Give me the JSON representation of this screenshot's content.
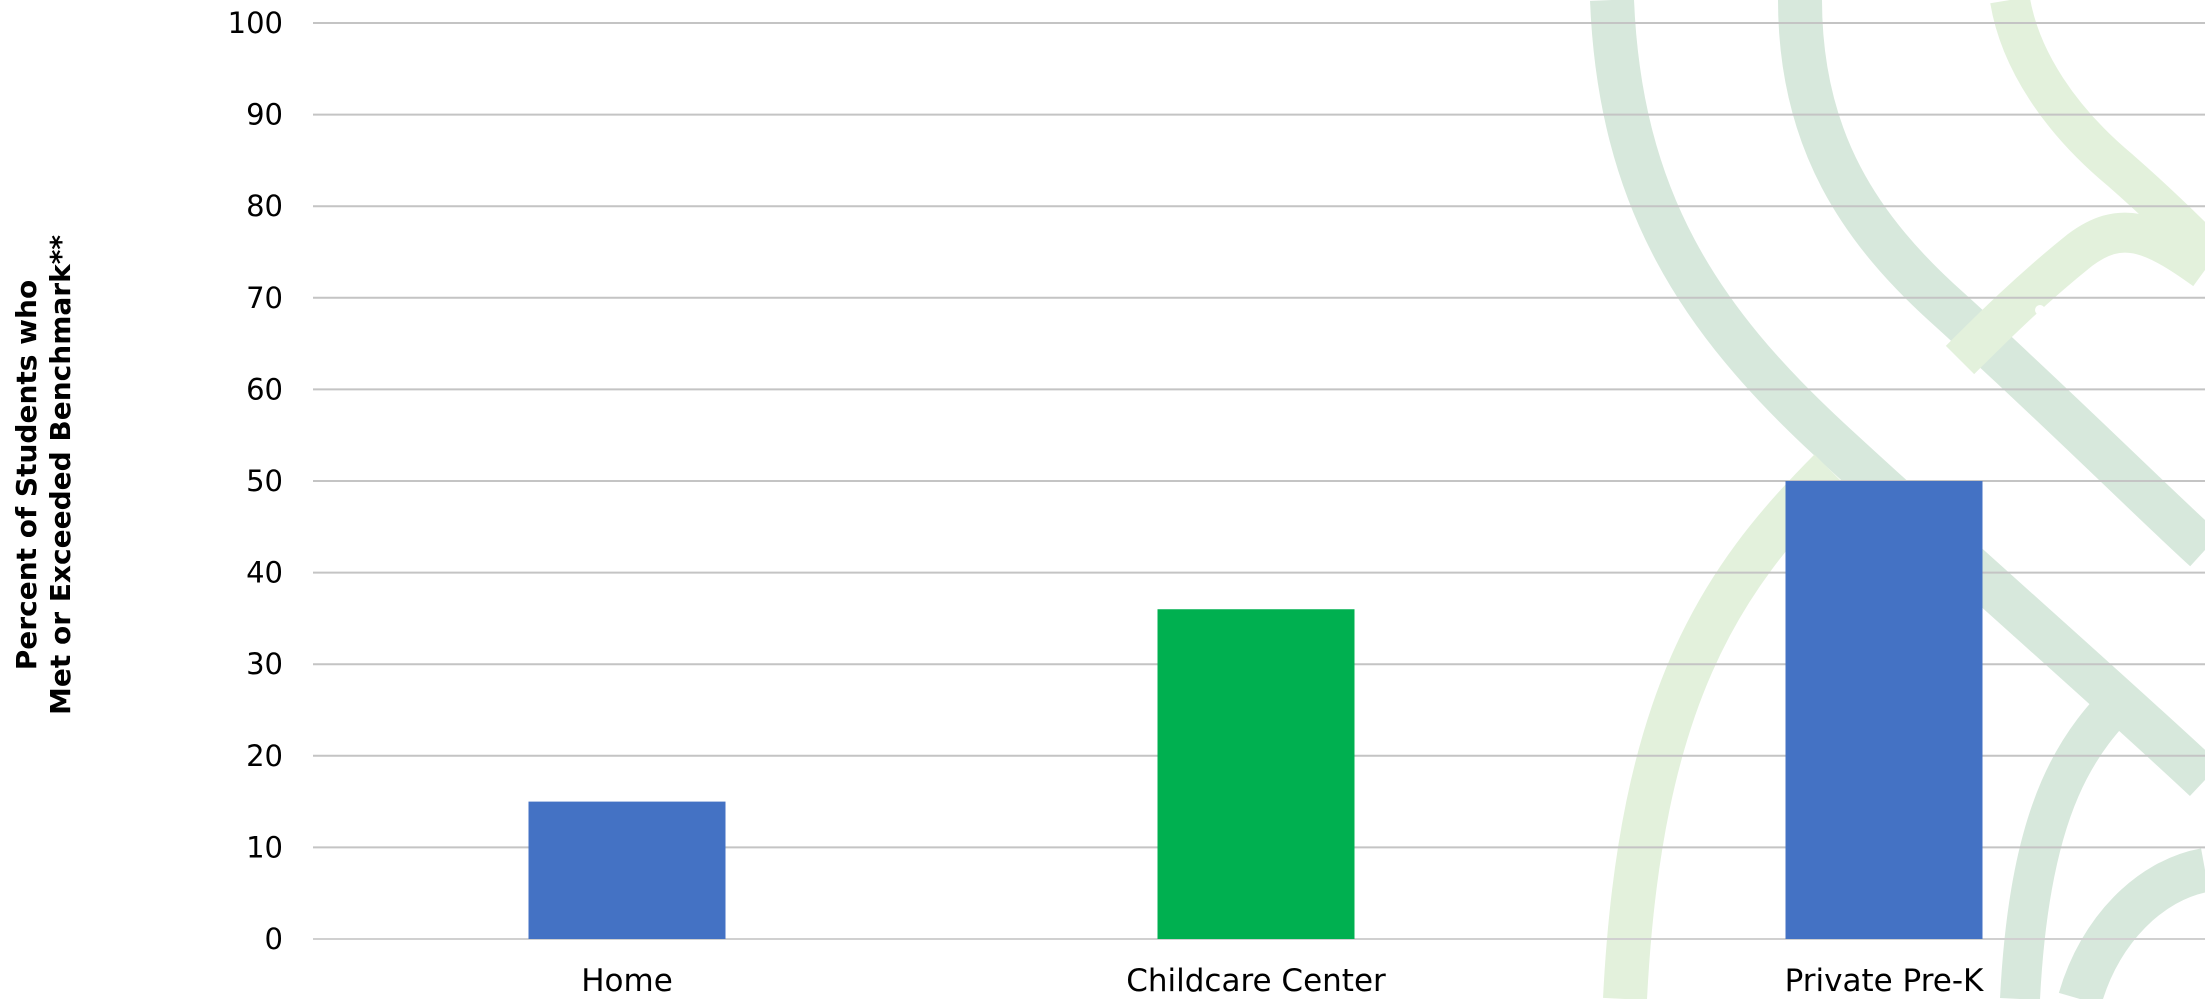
{
  "chart_data": {
    "type": "bar",
    "title": "",
    "xlabel": "",
    "ylabel_lines": [
      "Percent of Students who",
      "Met or Exceeded Benchmark**"
    ],
    "categories": [
      "Home",
      "Childcare Center",
      "Private Pre-K"
    ],
    "values": [
      15,
      36,
      50
    ],
    "bar_colors": [
      "#4472c4",
      "#00b050",
      "#4472c4"
    ],
    "ylim": [
      0,
      100
    ],
    "yticks": [
      "0",
      "10",
      "20",
      "30",
      "40",
      "50",
      "60",
      "70",
      "80",
      "90",
      "100"
    ],
    "grid": true,
    "legend": "none"
  }
}
